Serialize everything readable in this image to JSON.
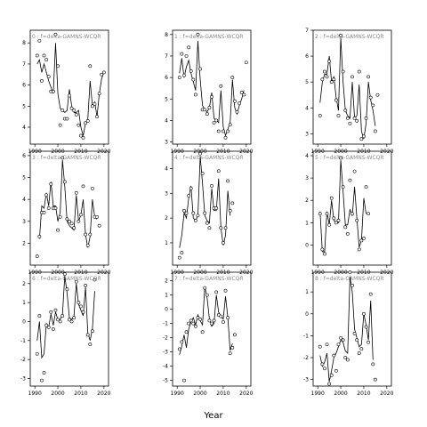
{
  "chart_data": {
    "type": "scatter",
    "xlabel": "Year",
    "grid": false,
    "panels": [
      {
        "title": "0 : f=delta-GAMNS-WCQR",
        "ylim": [
          3.2,
          8.6
        ],
        "yticks": [
          4,
          5,
          6,
          7,
          8
        ],
        "x": [
          1991,
          1992,
          1993,
          1994,
          1995,
          1996,
          1997,
          1998,
          1999,
          2000,
          2001,
          2002,
          2003,
          2004,
          2005,
          2006,
          2007,
          2008,
          2009,
          2010,
          2011,
          2012,
          2013,
          2014,
          2015,
          2016,
          2017,
          2018,
          2019,
          2020
        ],
        "points": [
          7.4,
          8.1,
          6.2,
          7.4,
          7.2,
          6.4,
          5.7,
          5.7,
          8.4,
          6.9,
          4.1,
          4.8,
          4.4,
          4.4,
          5.5,
          4.9,
          4.8,
          4.6,
          4.1,
          3.6,
          3.5,
          4.2,
          4.3,
          6.9,
          5.0,
          5.1,
          4.5,
          5.6,
          6.5,
          6.6
        ],
        "line": [
          7.0,
          7.2,
          6.6,
          7.0,
          6.6,
          6.2,
          5.9,
          5.6,
          8.0,
          5.6,
          4.9,
          4.8,
          4.7,
          4.8,
          5.8,
          5.0,
          4.7,
          4.7,
          4.8,
          4.0,
          3.6,
          4.2,
          4.4,
          6.2,
          5.0,
          5.2,
          4.5,
          5.6,
          6.3,
          6.6
        ]
      },
      {
        "title": "3 : f=delta-GAMNS-WCQR",
        "ylim": [
          1.0,
          6.2
        ],
        "yticks": [
          2,
          3,
          4,
          5,
          6
        ],
        "x": [
          1991,
          1992,
          1993,
          1994,
          1995,
          1996,
          1997,
          1998,
          1999,
          2000,
          2001,
          2002,
          2003,
          2004,
          2005,
          2006,
          2007,
          2008,
          2009,
          2010,
          2011,
          2012,
          2013,
          2014,
          2015,
          2016,
          2017,
          2018,
          2019,
          2020
        ],
        "points": [
          1.4,
          2.3,
          3.4,
          3.4,
          4.2,
          3.6,
          4.7,
          3.6,
          3.6,
          2.6,
          3.2,
          5.9,
          4.8,
          3.1,
          3.0,
          2.9,
          2.7,
          4.3,
          3.0,
          3.3,
          4.6,
          2.4,
          1.9,
          2.4,
          4.5,
          3.2,
          3.2,
          2.8,
          null,
          null
        ],
        "line": [
          null,
          2.2,
          3.7,
          3.6,
          4.3,
          3.7,
          4.8,
          3.7,
          3.7,
          3.0,
          3.4,
          5.8,
          4.6,
          3.0,
          2.8,
          2.7,
          2.6,
          4.2,
          3.0,
          3.3,
          4.0,
          2.4,
          1.8,
          2.3,
          4.0,
          3.2,
          3.1,
          null,
          null,
          null
        ]
      },
      {
        "title": "6 : f=delta-GAMNS-WCQR",
        "ylim": [
          -3.4,
          2.6
        ],
        "yticks": [
          -3,
          -2,
          -1,
          0,
          1,
          2
        ],
        "x": [
          1991,
          1992,
          1993,
          1994,
          1995,
          1996,
          1997,
          1998,
          1999,
          2000,
          2001,
          2002,
          2003,
          2004,
          2005,
          2006,
          2007,
          2008,
          2009,
          2010,
          2011,
          2012,
          2013,
          2014,
          2015,
          2016,
          2017,
          2018,
          2019,
          2020
        ],
        "points": [
          -1.7,
          0.3,
          -3.1,
          -2.7,
          -0.2,
          -0.3,
          0.5,
          -0.4,
          0.6,
          0.1,
          0.0,
          0.3,
          2.5,
          1.7,
          0.1,
          0.0,
          0.2,
          2.1,
          1.0,
          0.8,
          0.5,
          1.9,
          -0.7,
          -1.2,
          -0.5,
          2.2,
          null,
          null,
          null,
          null
        ],
        "line": [
          -1.0,
          0.0,
          -1.9,
          -1.7,
          -0.1,
          -0.3,
          0.4,
          -0.2,
          0.5,
          0.1,
          0.1,
          0.4,
          2.4,
          1.5,
          0.2,
          0.1,
          0.3,
          2.0,
          0.9,
          0.6,
          0.3,
          1.8,
          -0.6,
          -1.0,
          -0.4,
          1.6,
          null,
          null,
          null,
          null
        ]
      },
      {
        "title": "1 : f=delta-GAMNS-WCQR",
        "ylim": [
          2.9,
          8.2
        ],
        "yticks": [
          3,
          4,
          5,
          6,
          7,
          8
        ],
        "x": [
          1991,
          1992,
          1993,
          1994,
          1995,
          1996,
          1997,
          1998,
          1999,
          2000,
          2001,
          2002,
          2003,
          2004,
          2005,
          2006,
          2007,
          2008,
          2009,
          2010,
          2011,
          2012,
          2013,
          2014,
          2015,
          2016,
          2017,
          2018,
          2019,
          2020
        ],
        "points": [
          6.0,
          7.1,
          6.1,
          7.0,
          7.4,
          6.3,
          5.9,
          5.2,
          8.0,
          6.4,
          4.5,
          4.5,
          4.3,
          4.6,
          5.1,
          3.9,
          4.0,
          3.5,
          5.6,
          3.5,
          3.2,
          3.5,
          3.8,
          6.0,
          4.9,
          4.4,
          4.8,
          5.3,
          5.2,
          6.7
        ],
        "line": [
          6.2,
          6.9,
          6.0,
          6.5,
          6.8,
          6.2,
          5.8,
          5.4,
          7.7,
          5.9,
          4.7,
          4.5,
          4.4,
          4.6,
          5.3,
          4.1,
          4.0,
          3.9,
          5.4,
          3.7,
          3.3,
          3.6,
          3.9,
          5.9,
          4.6,
          4.3,
          4.7,
          5.0,
          5.4,
          null
        ]
      },
      {
        "title": "4 : f=delta-GAMNS-WCQR",
        "ylim": [
          0.1,
          4.7
        ],
        "yticks": [
          1,
          2,
          3,
          4
        ],
        "x": [
          1991,
          1992,
          1993,
          1994,
          1995,
          1996,
          1997,
          1998,
          1999,
          2000,
          2001,
          2002,
          2003,
          2004,
          2005,
          2006,
          2007,
          2008,
          2009,
          2010,
          2011,
          2012,
          2013,
          2014,
          2015,
          2016,
          2017,
          2018,
          2019,
          2020
        ],
        "points": [
          0.4,
          0.6,
          2.3,
          2.2,
          2.9,
          3.2,
          2.2,
          1.9,
          2.1,
          4.6,
          3.8,
          2.2,
          1.8,
          1.6,
          3.3,
          2.4,
          2.4,
          3.9,
          1.6,
          1.0,
          1.6,
          3.5,
          2.3,
          2.6,
          null,
          null,
          null,
          null,
          null,
          null
        ],
        "line": [
          0.8,
          1.3,
          2.2,
          2.0,
          2.8,
          3.3,
          2.0,
          1.9,
          2.1,
          4.5,
          3.4,
          2.1,
          1.9,
          1.8,
          3.2,
          2.3,
          2.3,
          3.6,
          1.6,
          0.9,
          1.3,
          3.1,
          2.1,
          null,
          null,
          null,
          null,
          null,
          null,
          null
        ]
      },
      {
        "title": "7 : f=delta-GAMNS-WCQR",
        "ylim": [
          -5.4,
          2.6
        ],
        "yticks": [
          -5,
          -4,
          -3,
          -2,
          -1,
          0,
          1,
          2
        ],
        "x": [
          1991,
          1992,
          1993,
          1994,
          1995,
          1996,
          1997,
          1998,
          1999,
          2000,
          2001,
          2002,
          2003,
          2004,
          2005,
          2006,
          2007,
          2008,
          2009,
          2010,
          2011,
          2012,
          2013,
          2014,
          2015,
          2016,
          2017,
          2018,
          2019,
          2020
        ],
        "points": [
          -2.8,
          -2.3,
          -5.0,
          -1.6,
          -1.0,
          -0.8,
          -1.0,
          -1.2,
          -0.6,
          -0.7,
          -1.6,
          1.5,
          1.0,
          -0.8,
          -1.0,
          -0.8,
          1.2,
          -0.4,
          -0.5,
          -0.9,
          1.3,
          -0.6,
          -3.1,
          -2.7,
          -1.8,
          null,
          null,
          null,
          null,
          null
        ],
        "line": [
          -3.2,
          -2.6,
          -1.8,
          -2.7,
          -1.4,
          -0.9,
          -0.6,
          -1.1,
          -0.4,
          -0.8,
          -1.1,
          1.6,
          0.8,
          -0.7,
          -1.2,
          -1.0,
          1.0,
          -0.2,
          -0.5,
          -0.7,
          0.9,
          -0.6,
          -2.9,
          -2.4,
          null,
          null,
          null,
          null,
          null,
          null
        ]
      },
      {
        "title": "2 : f=delta-GAMNS-WCQR",
        "ylim": [
          2.6,
          7.0
        ],
        "yticks": [
          3,
          4,
          5,
          6,
          7
        ],
        "x": [
          1991,
          1992,
          1993,
          1994,
          1995,
          1996,
          1997,
          1998,
          1999,
          2000,
          2001,
          2002,
          2003,
          2004,
          2005,
          2006,
          2007,
          2008,
          2009,
          2010,
          2011,
          2012,
          2013,
          2014,
          2015,
          2016,
          2017,
          2018,
          2019,
          2020
        ],
        "points": [
          3.7,
          5.1,
          5.4,
          5.2,
          5.8,
          5.0,
          5.1,
          4.3,
          3.7,
          6.8,
          5.4,
          3.9,
          3.6,
          3.4,
          5.2,
          3.6,
          3.5,
          5.4,
          2.8,
          2.9,
          3.6,
          5.2,
          4.4,
          4.1,
          3.1,
          4.5,
          null,
          null,
          null,
          null
        ],
        "line": [
          4.2,
          5.0,
          5.3,
          5.3,
          6.0,
          5.0,
          5.2,
          4.4,
          3.9,
          6.7,
          5.0,
          3.9,
          3.7,
          3.6,
          5.0,
          3.6,
          3.7,
          4.9,
          3.1,
          2.8,
          3.4,
          5.0,
          4.3,
          3.9,
          3.3,
          null,
          null,
          null,
          null,
          null
        ]
      },
      {
        "title": "5 : f=delta-GAMNS-WCQR",
        "ylim": [
          -0.9,
          4.2
        ],
        "yticks": [
          0,
          1,
          2,
          3,
          4
        ],
        "x": [
          1991,
          1992,
          1993,
          1994,
          1995,
          1996,
          1997,
          1998,
          1999,
          2000,
          2001,
          2002,
          2003,
          2004,
          2005,
          2006,
          2007,
          2008,
          2009,
          2010,
          2011,
          2012,
          2013,
          2014,
          2015,
          2016,
          2017,
          2018,
          2019,
          2020
        ],
        "points": [
          1.4,
          -0.2,
          -0.4,
          1.4,
          0.9,
          2.1,
          1.2,
          1.0,
          1.1,
          3.9,
          2.6,
          0.8,
          0.5,
          2.9,
          1.4,
          3.3,
          1.1,
          -0.2,
          0.2,
          0.3,
          2.6,
          1.4,
          null,
          null,
          null,
          null,
          null,
          null,
          null,
          null
        ],
        "line": [
          1.5,
          -0.3,
          -0.3,
          1.5,
          0.9,
          2.0,
          1.1,
          1.0,
          1.0,
          3.8,
          2.4,
          0.9,
          0.9,
          1.6,
          1.3,
          2.6,
          1.2,
          -0.1,
          0.2,
          2.1,
          1.4,
          null,
          null,
          null,
          null,
          null,
          null,
          null,
          null,
          null
        ]
      },
      {
        "title": "8 : f=delta-GAMNS-WCQR",
        "ylim": [
          -3.3,
          1.9
        ],
        "yticks": [
          -3,
          -2,
          -1,
          0,
          1
        ],
        "x": [
          1991,
          1992,
          1993,
          1994,
          1995,
          1996,
          1997,
          1998,
          1999,
          2000,
          2001,
          2002,
          2003,
          2004,
          2005,
          2006,
          2007,
          2008,
          2009,
          2010,
          2011,
          2012,
          2013,
          2014,
          2015,
          2016,
          2017,
          2018,
          2019,
          2020
        ],
        "points": [
          -1.5,
          -2.3,
          -2.5,
          -1.4,
          -3.2,
          -2.8,
          -1.9,
          -2.6,
          -1.4,
          -1.1,
          -1.2,
          -2.0,
          -2.1,
          1.9,
          1.3,
          -0.9,
          -1.2,
          -1.8,
          -1.6,
          0.0,
          -0.6,
          -1.3,
          0.9,
          -2.3,
          -3.0,
          null,
          null,
          null,
          null,
          null
        ],
        "line": [
          -1.9,
          -2.4,
          -2.2,
          -1.8,
          -3.1,
          -2.6,
          -2.0,
          -1.8,
          -1.5,
          -1.2,
          -1.3,
          -1.7,
          -1.8,
          1.7,
          1.0,
          -0.7,
          -1.1,
          -1.5,
          -1.4,
          0.0,
          -0.5,
          -1.2,
          0.6,
          -2.1,
          null,
          null,
          null,
          null,
          null,
          null
        ]
      }
    ],
    "xlim": [
      1988,
      2022
    ],
    "xticks": [
      1990,
      2000,
      2010,
      2020
    ]
  }
}
